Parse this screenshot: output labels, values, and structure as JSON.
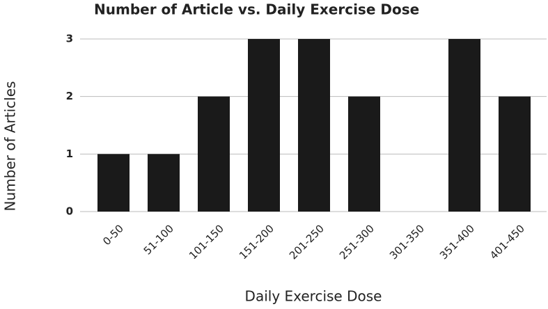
{
  "chart_data": {
    "type": "bar",
    "title": "Number of Article vs. Daily Exercise Dose",
    "x_label": "Daily Exercise Dose",
    "y_label": "Number of Articles",
    "categories": [
      "0-50",
      "51-100",
      "101-150",
      "151-200",
      "201-250",
      "251-300",
      "301-350",
      "351-400",
      "401-450"
    ],
    "values": [
      1,
      1,
      2,
      3,
      3,
      2,
      0,
      3,
      2
    ],
    "color": "#1a1a1a",
    "ylim": [
      0,
      3
    ],
    "yticks": [
      0,
      1,
      2,
      3
    ],
    "grid": true
  }
}
